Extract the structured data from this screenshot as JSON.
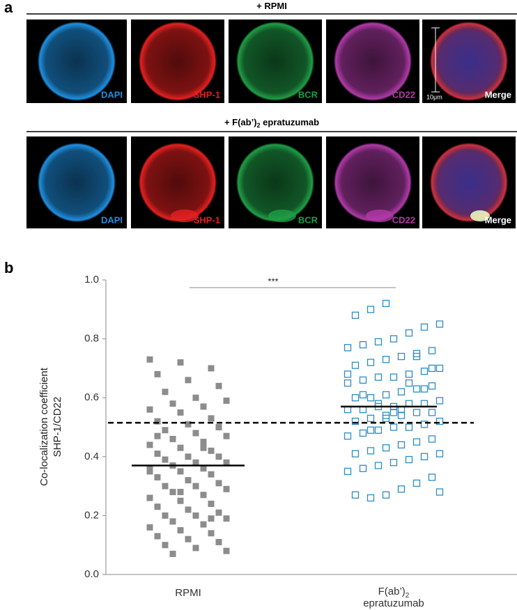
{
  "panel_a": {
    "label": "a",
    "rows": [
      {
        "title": [
          "+ RPMI"
        ]
      },
      {
        "title": [
          "+ F(ab’)",
          "2",
          " epratuzumab"
        ]
      }
    ],
    "channels": [
      {
        "label": "DAPI",
        "color": "#1e8fe0"
      },
      {
        "label": "SHP-1",
        "color": "#e52020"
      },
      {
        "label": "BCR",
        "color": "#1f9d46"
      },
      {
        "label": "CD22",
        "color": "#b03aa8"
      },
      {
        "label": "Merge",
        "color": "#ffffff"
      }
    ],
    "scale_bar": "10μm"
  },
  "chart_data": {
    "type": "scatter",
    "panel_label": "b",
    "y_label": [
      "Co-localization coefficient",
      "SHP-1/CD22"
    ],
    "categories": [
      [
        "RPMI"
      ],
      [
        "F(ab’)",
        "2",
        "epratuzumab"
      ]
    ],
    "series": [
      {
        "color": "#8c8c8c",
        "marker": "filled-square",
        "mean": 0.37,
        "values": [
          0.73,
          0.72,
          0.7,
          0.68,
          0.66,
          0.64,
          0.62,
          0.6,
          0.59,
          0.58,
          0.57,
          0.56,
          0.55,
          0.53,
          0.52,
          0.51,
          0.5,
          0.49,
          0.48,
          0.47,
          0.46,
          0.45,
          0.44,
          0.43,
          0.42,
          0.41,
          0.4,
          0.4,
          0.39,
          0.38,
          0.38,
          0.37,
          0.36,
          0.35,
          0.35,
          0.34,
          0.33,
          0.32,
          0.31,
          0.3,
          0.3,
          0.29,
          0.28,
          0.27,
          0.26,
          0.25,
          0.24,
          0.23,
          0.22,
          0.21,
          0.2,
          0.2,
          0.19,
          0.18,
          0.17,
          0.16,
          0.15,
          0.14,
          0.13,
          0.12,
          0.11,
          0.1,
          0.09,
          0.08,
          0.07,
          0.43,
          0.36,
          0.28,
          0.19,
          0.47
        ]
      },
      {
        "color": "#2b8cc4",
        "marker": "open-square",
        "mean": 0.57,
        "values": [
          0.92,
          0.9,
          0.88,
          0.85,
          0.84,
          0.82,
          0.8,
          0.79,
          0.78,
          0.77,
          0.76,
          0.75,
          0.74,
          0.73,
          0.72,
          0.71,
          0.7,
          0.69,
          0.68,
          0.67,
          0.67,
          0.66,
          0.65,
          0.64,
          0.63,
          0.62,
          0.61,
          0.6,
          0.6,
          0.59,
          0.58,
          0.58,
          0.57,
          0.57,
          0.56,
          0.56,
          0.55,
          0.55,
          0.54,
          0.54,
          0.53,
          0.52,
          0.52,
          0.51,
          0.5,
          0.5,
          0.49,
          0.48,
          0.47,
          0.46,
          0.45,
          0.44,
          0.43,
          0.42,
          0.41,
          0.41,
          0.4,
          0.39,
          0.38,
          0.37,
          0.36,
          0.35,
          0.33,
          0.31,
          0.29,
          0.27,
          0.26,
          0.27,
          0.28,
          0.63,
          0.65,
          0.55,
          0.58,
          0.61,
          0.68,
          0.7,
          0.74,
          0.56,
          0.53,
          0.49
        ]
      }
    ],
    "threshold": 0.515,
    "significance": "***",
    "ylim": [
      0,
      1
    ],
    "yticks": [
      {
        "value": 0,
        "label": "0.0"
      },
      {
        "value": 0.2,
        "label": "0.2"
      },
      {
        "value": 0.4,
        "label": "0.4"
      },
      {
        "value": 0.6,
        "label": "0.6"
      },
      {
        "value": 0.8,
        "label": "0.8"
      },
      {
        "value": 1,
        "label": "1.0"
      }
    ]
  }
}
